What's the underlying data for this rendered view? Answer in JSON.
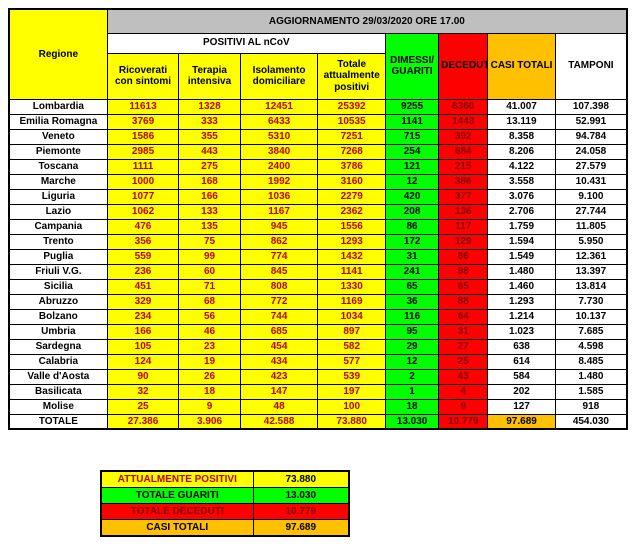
{
  "title": "AGGIORNAMENTO 29/03/2020 ORE 17.00",
  "chart_data": {
    "type": "table",
    "title": "AGGIORNAMENTO 29/03/2020 ORE 17.00",
    "region_header": "Regione",
    "group_header": "POSITIVI AL nCoV",
    "columns": [
      "Ricoverati con sintomi",
      "Terapia intensiva",
      "Isolamento domiciliare",
      "Totale attualmente positivi",
      "DIMESSI/\nGUARITI",
      "DECEDUTI",
      "CASI TOTALI",
      "TAMPONI"
    ],
    "rows": [
      {
        "regione": "Lombardia",
        "values": [
          "11613",
          "1328",
          "12451",
          "25392",
          "9255",
          "6360",
          "41.007",
          "107.398"
        ]
      },
      {
        "regione": "Emilia Romagna",
        "values": [
          "3769",
          "333",
          "6433",
          "10535",
          "1141",
          "1443",
          "13.119",
          "52.991"
        ]
      },
      {
        "regione": "Veneto",
        "values": [
          "1586",
          "355",
          "5310",
          "7251",
          "715",
          "392",
          "8.358",
          "94.784"
        ]
      },
      {
        "regione": "Piemonte",
        "values": [
          "2985",
          "443",
          "3840",
          "7268",
          "254",
          "684",
          "8.206",
          "24.058"
        ]
      },
      {
        "regione": "Toscana",
        "values": [
          "1111",
          "275",
          "2400",
          "3786",
          "121",
          "215",
          "4.122",
          "27.579"
        ]
      },
      {
        "regione": "Marche",
        "values": [
          "1000",
          "168",
          "1992",
          "3160",
          "12",
          "386",
          "3.558",
          "10.431"
        ]
      },
      {
        "regione": "Liguria",
        "values": [
          "1077",
          "166",
          "1036",
          "2279",
          "420",
          "377",
          "3.076",
          "9.100"
        ]
      },
      {
        "regione": "Lazio",
        "values": [
          "1062",
          "133",
          "1167",
          "2362",
          "208",
          "136",
          "2.706",
          "27.744"
        ]
      },
      {
        "regione": "Campania",
        "values": [
          "476",
          "135",
          "945",
          "1556",
          "86",
          "117",
          "1.759",
          "11.805"
        ]
      },
      {
        "regione": "Trento",
        "values": [
          "356",
          "75",
          "862",
          "1293",
          "172",
          "129",
          "1.594",
          "5.950"
        ]
      },
      {
        "regione": "Puglia",
        "values": [
          "559",
          "99",
          "774",
          "1432",
          "31",
          "86",
          "1.549",
          "12.361"
        ]
      },
      {
        "regione": "Friuli V.G.",
        "values": [
          "236",
          "60",
          "845",
          "1141",
          "241",
          "98",
          "1.480",
          "13.397"
        ]
      },
      {
        "regione": "Sicilia",
        "values": [
          "451",
          "71",
          "808",
          "1330",
          "65",
          "65",
          "1.460",
          "13.814"
        ]
      },
      {
        "regione": "Abruzzo",
        "values": [
          "329",
          "68",
          "772",
          "1169",
          "36",
          "88",
          "1.293",
          "7.730"
        ]
      },
      {
        "regione": "Bolzano",
        "values": [
          "234",
          "56",
          "744",
          "1034",
          "116",
          "64",
          "1.214",
          "10.137"
        ]
      },
      {
        "regione": "Umbria",
        "values": [
          "166",
          "46",
          "685",
          "897",
          "95",
          "31",
          "1.023",
          "7.685"
        ]
      },
      {
        "regione": "Sardegna",
        "values": [
          "105",
          "23",
          "454",
          "582",
          "29",
          "27",
          "638",
          "4.598"
        ]
      },
      {
        "regione": "Calabria",
        "values": [
          "124",
          "19",
          "434",
          "577",
          "12",
          "25",
          "614",
          "8.485"
        ]
      },
      {
        "regione": "Valle d'Aosta",
        "values": [
          "90",
          "26",
          "423",
          "539",
          "2",
          "43",
          "584",
          "1.480"
        ]
      },
      {
        "regione": "Basilicata",
        "values": [
          "32",
          "18",
          "147",
          "197",
          "1",
          "4",
          "202",
          "1.585"
        ]
      },
      {
        "regione": "Molise",
        "values": [
          "25",
          "9",
          "48",
          "100",
          "18",
          "9",
          "127",
          "918"
        ]
      }
    ],
    "totale": {
      "label": "TOTALE",
      "values": [
        "27.386",
        "3.906",
        "42.588",
        "73.880",
        "13.030",
        "10.779",
        "97.689",
        "454.030"
      ]
    }
  },
  "summary": [
    {
      "label": "ATTUALMENTE POSITIVI",
      "value": "73.880",
      "bg": "#FFFF00",
      "fg": "#C00000",
      "vfg": "#000000"
    },
    {
      "label": "TOTALE GUARITI",
      "value": "13.030",
      "bg": "#00FF00",
      "fg": "#000000",
      "vfg": "#000000"
    },
    {
      "label": "TOTALE DECEDUTI",
      "value": "10.779",
      "bg": "#FF0000",
      "fg": "#7F0000",
      "vfg": "#7F0000"
    },
    {
      "label": "CASI TOTALI",
      "value": "97.689",
      "bg": "#FFC000",
      "fg": "#000000",
      "vfg": "#000000"
    }
  ],
  "colors": {
    "yellow": "#FFFF00",
    "green": "#00FF00",
    "red": "#FF0000",
    "orange": "#FFC000",
    "header_gray": "#BFBFBF",
    "number_red": "#C00000"
  }
}
